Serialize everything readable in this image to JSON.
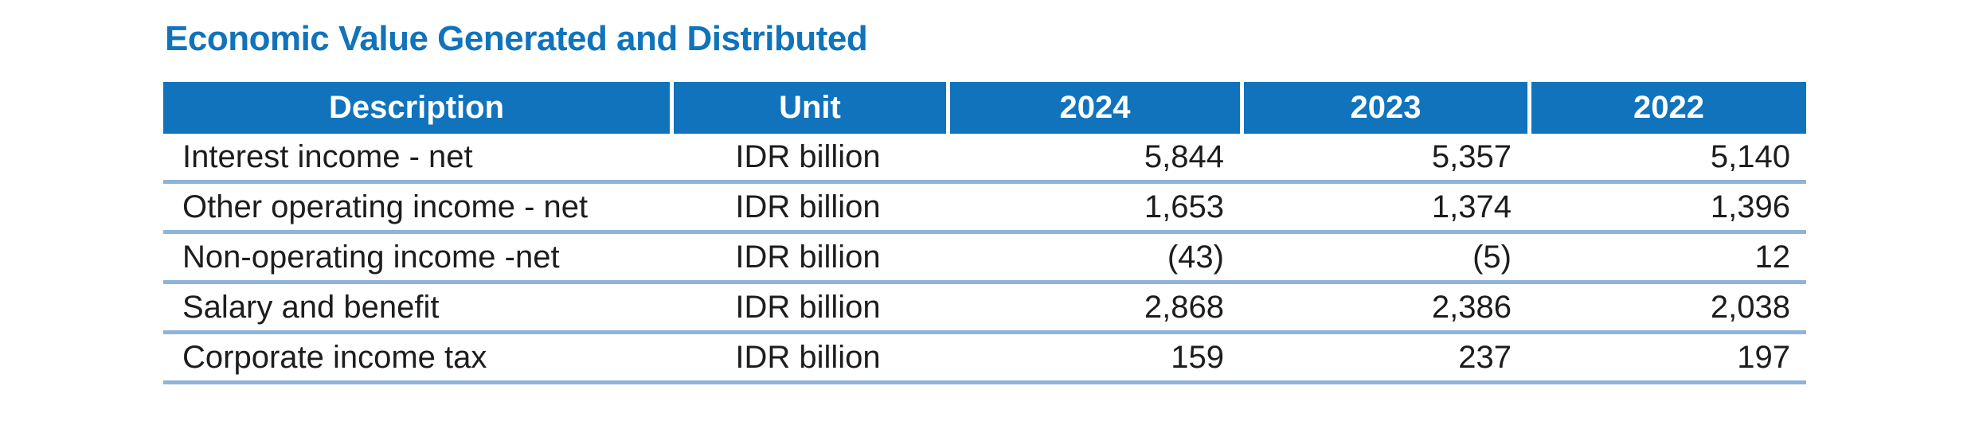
{
  "title": "Economic Value Generated and Distributed",
  "colors": {
    "title_blue": "#1073BC",
    "header_background": "#1073BC",
    "header_text": "#FFFFFF",
    "row_separator": "#8FB3D9",
    "body_text": "#1D1D1D"
  },
  "table": {
    "columns": [
      "Description",
      "Unit",
      "2024",
      "2023",
      "2022"
    ],
    "rows": [
      {
        "description": "Interest income - net",
        "unit": "IDR billion",
        "y2024": "5,844",
        "y2023": "5,357",
        "y2022": "5,140"
      },
      {
        "description": "Other operating income - net",
        "unit": "IDR billion",
        "y2024": "1,653",
        "y2023": "1,374",
        "y2022": "1,396"
      },
      {
        "description": "Non-operating income -net",
        "unit": "IDR billion",
        "y2024": "(43)",
        "y2023": "(5)",
        "y2022": "12"
      },
      {
        "description": "Salary and benefit",
        "unit": "IDR billion",
        "y2024": "2,868",
        "y2023": "2,386",
        "y2022": "2,038"
      },
      {
        "description": "Corporate income tax",
        "unit": "IDR billion",
        "y2024": "159",
        "y2023": "237",
        "y2022": "197"
      }
    ]
  }
}
